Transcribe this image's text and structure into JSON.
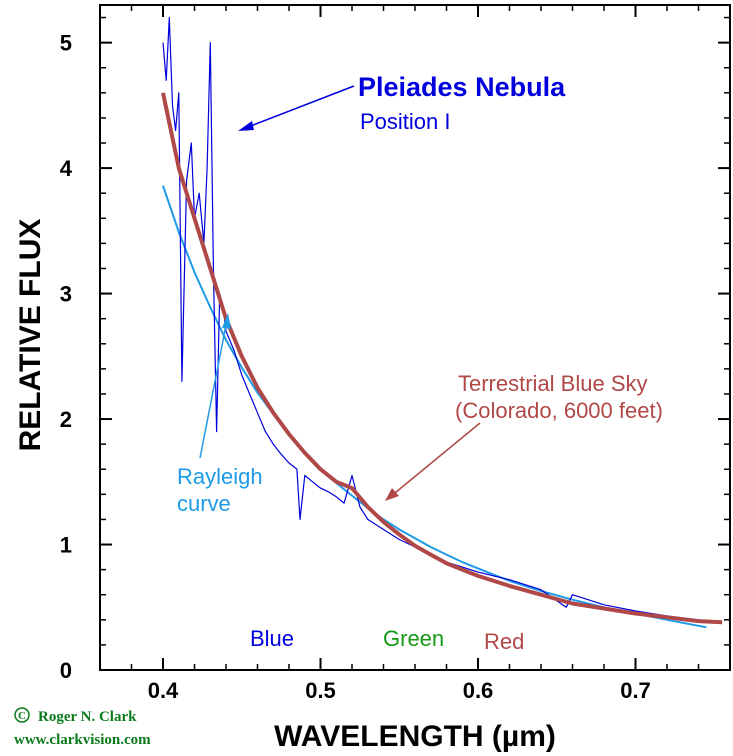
{
  "chart_data": {
    "type": "line",
    "xlabel": "WAVELENGTH (µm)",
    "ylabel": "RELATIVE FLUX",
    "xlim": [
      0.36,
      0.76
    ],
    "ylim": [
      0,
      5.3
    ],
    "x_ticks": [
      "0.4",
      "0.5",
      "0.6",
      "0.7"
    ],
    "x_tick_values": [
      0.4,
      0.5,
      0.6,
      0.7
    ],
    "y_ticks": [
      "0",
      "1",
      "2",
      "3",
      "4",
      "5"
    ],
    "y_tick_values": [
      0,
      1,
      2,
      3,
      4,
      5
    ],
    "series": [
      {
        "name": "Pleiades Nebula Position I",
        "color": "#0000dd",
        "x": [
          0.4,
          0.402,
          0.404,
          0.406,
          0.408,
          0.41,
          0.412,
          0.415,
          0.418,
          0.42,
          0.423,
          0.426,
          0.428,
          0.43,
          0.432,
          0.434,
          0.436,
          0.438,
          0.44,
          0.445,
          0.45,
          0.455,
          0.46,
          0.465,
          0.47,
          0.475,
          0.48,
          0.485,
          0.487,
          0.49,
          0.495,
          0.5,
          0.505,
          0.51,
          0.515,
          0.52,
          0.525,
          0.53,
          0.54,
          0.55,
          0.56,
          0.57,
          0.58,
          0.59,
          0.6,
          0.62,
          0.64,
          0.656,
          0.66,
          0.68,
          0.7,
          0.72,
          0.74,
          0.755
        ],
        "y": [
          5.0,
          4.7,
          5.2,
          4.5,
          4.3,
          4.6,
          2.3,
          3.9,
          4.2,
          3.6,
          3.8,
          3.4,
          4.0,
          5.0,
          3.2,
          1.9,
          3.0,
          2.9,
          2.7,
          2.55,
          2.35,
          2.2,
          2.05,
          1.9,
          1.8,
          1.72,
          1.65,
          1.6,
          1.2,
          1.55,
          1.5,
          1.45,
          1.42,
          1.38,
          1.33,
          1.55,
          1.3,
          1.2,
          1.12,
          1.04,
          0.98,
          0.92,
          0.86,
          0.82,
          0.78,
          0.72,
          0.64,
          0.5,
          0.6,
          0.52,
          0.47,
          0.43,
          0.4,
          0.38
        ]
      },
      {
        "name": "Terrestrial Blue Sky (Colorado, 6000 feet)",
        "color": "#b04848",
        "x": [
          0.4,
          0.41,
          0.42,
          0.43,
          0.44,
          0.45,
          0.46,
          0.47,
          0.48,
          0.49,
          0.5,
          0.51,
          0.52,
          0.53,
          0.54,
          0.55,
          0.56,
          0.57,
          0.58,
          0.59,
          0.6,
          0.62,
          0.64,
          0.66,
          0.68,
          0.7,
          0.72,
          0.74,
          0.755
        ],
        "y": [
          4.6,
          4.0,
          3.6,
          3.2,
          2.8,
          2.5,
          2.25,
          2.05,
          1.88,
          1.73,
          1.6,
          1.5,
          1.45,
          1.3,
          1.18,
          1.08,
          0.99,
          0.92,
          0.85,
          0.8,
          0.75,
          0.67,
          0.6,
          0.53,
          0.49,
          0.45,
          0.42,
          0.39,
          0.38
        ]
      },
      {
        "name": "Rayleigh curve",
        "color": "#1e9be6",
        "x": [
          0.4,
          0.41,
          0.42,
          0.43,
          0.44,
          0.45,
          0.46,
          0.47,
          0.48,
          0.49,
          0.5,
          0.51,
          0.52,
          0.53,
          0.54,
          0.55,
          0.56,
          0.57,
          0.58,
          0.59,
          0.6,
          0.62,
          0.64,
          0.66,
          0.68,
          0.7,
          0.72,
          0.745
        ],
        "y": [
          3.86,
          3.49,
          3.17,
          2.89,
          2.63,
          2.41,
          2.21,
          2.04,
          1.88,
          1.74,
          1.61,
          1.49,
          1.39,
          1.29,
          1.2,
          1.12,
          1.05,
          0.98,
          0.92,
          0.86,
          0.81,
          0.71,
          0.63,
          0.56,
          0.5,
          0.45,
          0.4,
          0.34
        ]
      }
    ],
    "annotations": {
      "pleiades_title": "Pleiades Nebula",
      "pleiades_sub": "Position I",
      "sky_line1": "Terrestrial Blue Sky",
      "sky_line2": "(Colorado, 6000 feet)",
      "rayleigh_line1": "Rayleigh",
      "rayleigh_line2": "curve",
      "band_blue": "Blue",
      "band_green": "Green",
      "band_red": "Red"
    },
    "colors": {
      "pleiades": "#0000dd",
      "sky": "#b04848",
      "rayleigh": "#1e9be6",
      "green_label": "#159a15"
    }
  },
  "credit": {
    "copyright_symbol": "©",
    "author": "Roger N. Clark",
    "website": "www.clarkvision.com",
    "color": "#0a7a1a"
  }
}
